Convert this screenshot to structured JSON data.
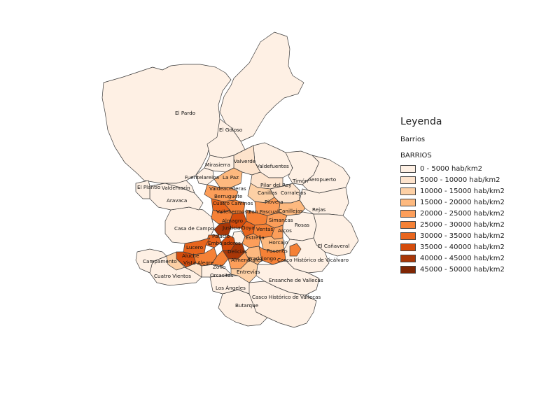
{
  "legend": {
    "title": "Leyenda",
    "layer": "Barrios",
    "group": "BARRIOS",
    "classes": [
      {
        "label": "0 - 5000 hab/km2",
        "color": "#fef0e4"
      },
      {
        "label": "5000 - 10000 hab/km2",
        "color": "#fde3cc"
      },
      {
        "label": "10000 - 15000 hab/km2",
        "color": "#fdd0a5"
      },
      {
        "label": "15000 - 20000 hab/km2",
        "color": "#fdb97f"
      },
      {
        "label": "20000 - 25000 hab/km2",
        "color": "#fc9e5a"
      },
      {
        "label": "25000 - 30000 hab/km2",
        "color": "#f58136"
      },
      {
        "label": "30000 - 35000 hab/km2",
        "color": "#e8651d"
      },
      {
        "label": "35000 - 40000 hab/km2",
        "color": "#d44c0c"
      },
      {
        "label": "40000 - 45000 hab/km2",
        "color": "#a93707"
      },
      {
        "label": "45000 - 50000 hab/km2",
        "color": "#7f2604"
      }
    ]
  },
  "labels": [
    "El Pardo",
    "El Goloso",
    "Valverde",
    "Valdefuentes",
    "Mirasierra",
    "Fuentelareina",
    "La Paz",
    "Pilar del Rey",
    "Timón",
    "Aeropuerto",
    "El Plantío",
    "Valdemarín",
    "Valdeacederas",
    "Canillas",
    "Corralejos",
    "Berruguete",
    "Aravaca",
    "Cuatro Caminos",
    "Piovera",
    "Vallehermoso",
    "San Pascual",
    "Canillejas",
    "Rejas",
    "Almagro",
    "Simancas",
    "Casa de Campo",
    "Justicia",
    "Goya",
    "Ventas",
    "Arcos",
    "Rosas",
    "Palacio",
    "Estrella",
    "Lucero",
    "Embajadores",
    "Horcajo",
    "El Cañaveral",
    "Pavones",
    "Aluche",
    "Delicias",
    "Campamento",
    "Vista Alegre",
    "Zofío",
    "Pradolongo",
    "Casco Histórico de Vicálvaro",
    "Almendrales",
    "Entrevías",
    "Cuatro Vientos",
    "Orcasitas",
    "Ensanche de Vallecas",
    "Los Ángeles",
    "Casco Histórico de Vallecas",
    "Butarque"
  ]
}
